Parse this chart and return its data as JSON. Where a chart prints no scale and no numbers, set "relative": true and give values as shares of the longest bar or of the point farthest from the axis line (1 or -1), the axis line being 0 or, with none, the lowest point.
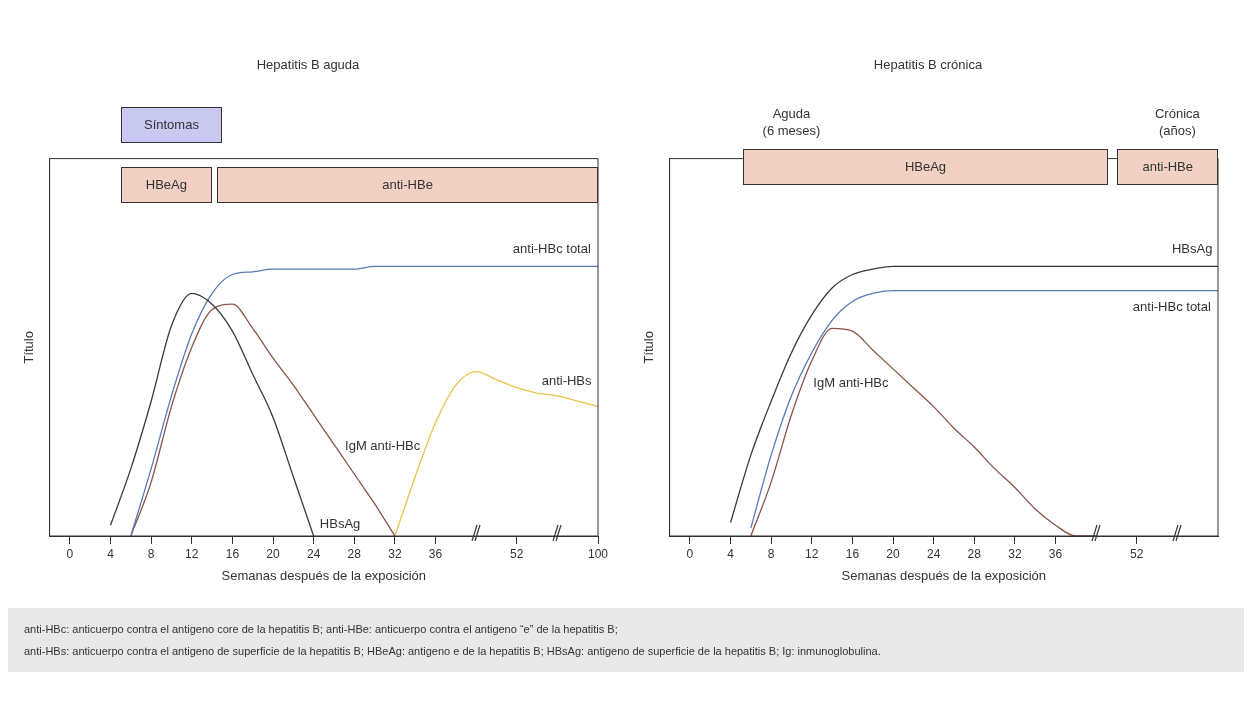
{
  "chart_data": [
    {
      "type": "line",
      "title": "Hepatitis B aguda",
      "xlabel": "Semanas después de la exposición",
      "ylabel": "Título",
      "relative": true,
      "legend": false,
      "marker": "none",
      "categories": [
        null,
        "0",
        null,
        "4",
        null,
        "8",
        null,
        "12",
        null,
        "16",
        null,
        "20",
        null,
        "24",
        null,
        "28",
        null,
        "32",
        null,
        "36",
        null,
        null,
        null,
        "52",
        null,
        null,
        null,
        "100"
      ],
      "series": [
        {
          "name": "HBsAg",
          "color": "#3a3a3a",
          "values": [
            null,
            null,
            null,
            0.04,
            0.25,
            0.5,
            0.78,
            0.9,
            0.86,
            0.76,
            0.6,
            0.44,
            0.22,
            0,
            null,
            null,
            null,
            null,
            null,
            null,
            null,
            null,
            null,
            null,
            null,
            null,
            null,
            null
          ]
        },
        {
          "name": "anti-HBc total",
          "color": "#5a78b8",
          "values": [
            null,
            null,
            null,
            null,
            0,
            0.25,
            0.52,
            0.75,
            0.9,
            0.97,
            0.98,
            0.99,
            0.99,
            0.99,
            0.99,
            0.99,
            1,
            1,
            1,
            1,
            1,
            1,
            1,
            1,
            1,
            1,
            1,
            1
          ]
        },
        {
          "name": "IgM anti-HBc",
          "color": "#8a5448",
          "values": [
            null,
            null,
            null,
            null,
            0,
            0.2,
            0.48,
            0.7,
            0.84,
            0.86,
            0.77,
            0.66,
            0.56,
            0.45,
            0.34,
            0.23,
            0.12,
            0,
            null,
            null,
            null,
            null,
            null,
            null,
            null,
            null,
            null,
            null
          ]
        },
        {
          "name": "anti-HBs",
          "color": "#e8c24a",
          "values": [
            null,
            null,
            null,
            null,
            null,
            null,
            null,
            null,
            null,
            null,
            null,
            null,
            null,
            null,
            null,
            null,
            null,
            0,
            0.22,
            0.42,
            0.56,
            0.61,
            0.58,
            0.55,
            0.53,
            0.52,
            0.5,
            0.48
          ]
        }
      ],
      "annotations": [
        "HBeAg",
        "anti-HBe",
        "Síntomas"
      ]
    },
    {
      "type": "line",
      "title": "Hepatitis B crónica",
      "xlabel": "Semanas después de la exposición",
      "ylabel": "Título",
      "relative": true,
      "legend": false,
      "marker": "none",
      "categories": [
        null,
        "0",
        null,
        "4",
        null,
        "8",
        null,
        "12",
        null,
        "16",
        null,
        "20",
        null,
        "24",
        null,
        "28",
        null,
        "32",
        null,
        "36",
        null,
        null,
        null,
        "52",
        null,
        null,
        null,
        null
      ],
      "series": [
        {
          "name": "HBsAg",
          "color": "#3a3a3a",
          "values": [
            null,
            null,
            null,
            0.05,
            0.3,
            0.5,
            0.68,
            0.82,
            0.92,
            0.97,
            0.99,
            1,
            1,
            1,
            1,
            1,
            1,
            1,
            1,
            1,
            1,
            1,
            1,
            1,
            1,
            1,
            1,
            1
          ]
        },
        {
          "name": "anti-HBc total",
          "color": "#5a78b8",
          "values": [
            null,
            null,
            null,
            null,
            0.03,
            0.3,
            0.52,
            0.68,
            0.8,
            0.87,
            0.9,
            0.91,
            0.91,
            0.91,
            0.91,
            0.91,
            0.91,
            0.91,
            0.91,
            0.91,
            0.91,
            0.91,
            0.91,
            0.91,
            0.91,
            0.91,
            0.91,
            0.91
          ]
        },
        {
          "name": "IgM anti-HBc",
          "color": "#8a5448",
          "values": [
            null,
            null,
            null,
            null,
            0,
            0.2,
            0.45,
            0.65,
            0.77,
            0.76,
            0.69,
            0.62,
            0.55,
            0.48,
            0.4,
            0.33,
            0.25,
            0.18,
            0.1,
            0.04,
            0,
            0,
            null,
            null,
            null,
            null,
            null,
            null
          ]
        }
      ],
      "annotations": [
        "HBeAg",
        "anti-HBe",
        "Aguda\n(6 meses)",
        "Crónica\n(años)"
      ]
    },
    {
      "type": "other",
      "annotations": [
        "anti-HBc: anticuerpo contra el antigeno core de la hepatitis B; anti-HBe: anticuerpo contra el antigeno “e” de la hepatitis B;",
        "anti-HBs: anticuerpo contra el antigeno de superficie de la hepatitis B; HBeAg: antigeno e de la hepatitis B; HBsAg: antigeno de superficie de la hepatitis B; Ig: inmunoglobulina."
      ]
    }
  ]
}
